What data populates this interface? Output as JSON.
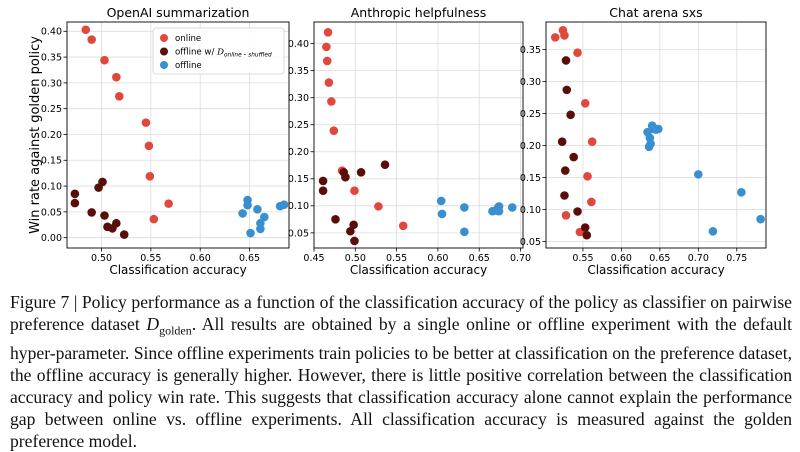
{
  "colors": {
    "online": "#e0483e",
    "offline_shuffled": "#5a0e0a",
    "offline": "#3a8fd0"
  },
  "shared_ylabel": "Win rate against golden policy",
  "chart_data": [
    {
      "type": "scatter",
      "title": "OpenAI summarization",
      "xlabel": "Classification accuracy",
      "xlim": [
        0.465,
        0.69
      ],
      "ylim": [
        -0.02,
        0.418
      ],
      "xticks": [
        0.5,
        0.55,
        0.6,
        0.65
      ],
      "xtick_labels": [
        "0.50",
        "0.55",
        "0.60",
        "0.65"
      ],
      "yticks": [
        0,
        0.05,
        0.1,
        0.15,
        0.2,
        0.25,
        0.3,
        0.35,
        0.4
      ],
      "ytick_labels": [
        "0.00",
        "0.05",
        "0.10",
        "0.15",
        "0.20",
        "0.25",
        "0.30",
        "0.35",
        "0.40"
      ],
      "grid": true,
      "legend": "top-center",
      "legend_entries": [
        {
          "key": "online",
          "label": "online"
        },
        {
          "key": "offline_shuffled",
          "label": "offline w/ ",
          "math": "D",
          "sub": "online – shuffled"
        },
        {
          "key": "offline",
          "label": "offline"
        }
      ],
      "series": [
        {
          "key": "online",
          "name": "online",
          "points": [
            [
              0.484,
              0.403
            ],
            [
              0.49,
              0.384
            ],
            [
              0.503,
              0.344
            ],
            [
              0.515,
              0.311
            ],
            [
              0.518,
              0.274
            ],
            [
              0.545,
              0.223
            ],
            [
              0.548,
              0.178
            ],
            [
              0.549,
              0.119
            ],
            [
              0.553,
              0.036
            ],
            [
              0.568,
              0.066
            ]
          ]
        },
        {
          "key": "offline_shuffled",
          "name": "offline w/ D online–shuffled",
          "points": [
            [
              0.473,
              0.085
            ],
            [
              0.473,
              0.067
            ],
            [
              0.497,
              0.097
            ],
            [
              0.501,
              0.108
            ],
            [
              0.49,
              0.049
            ],
            [
              0.503,
              0.043
            ],
            [
              0.506,
              0.021
            ],
            [
              0.511,
              0.018
            ],
            [
              0.515,
              0.028
            ],
            [
              0.523,
              0.006
            ]
          ]
        },
        {
          "key": "offline",
          "name": "offline",
          "points": [
            [
              0.643,
              0.047
            ],
            [
              0.648,
              0.073
            ],
            [
              0.648,
              0.063
            ],
            [
              0.651,
              0.009
            ],
            [
              0.658,
              0.055
            ],
            [
              0.661,
              0.028
            ],
            [
              0.661,
              0.017
            ],
            [
              0.665,
              0.04
            ],
            [
              0.681,
              0.061
            ],
            [
              0.685,
              0.064
            ]
          ]
        }
      ]
    },
    {
      "type": "scatter",
      "title": "Anthropic helpfulness",
      "xlabel": "Classification accuracy",
      "xlim": [
        0.45,
        0.703
      ],
      "ylim": [
        0.022,
        0.44
      ],
      "xticks": [
        0.45,
        0.5,
        0.55,
        0.6,
        0.65,
        0.7
      ],
      "xtick_labels": [
        "0.45",
        "0.50",
        "0.55",
        "0.60",
        "0.65",
        "0.70"
      ],
      "yticks": [
        0.05,
        0.1,
        0.15,
        0.2,
        0.25,
        0.3,
        0.35,
        0.4
      ],
      "ytick_labels": [
        "0.05",
        "0.10",
        "0.15",
        "0.20",
        "0.25",
        "0.30",
        "0.35",
        "0.40"
      ],
      "grid": true,
      "series": [
        {
          "key": "online",
          "name": "online",
          "points": [
            [
              0.467,
              0.421
            ],
            [
              0.465,
              0.394
            ],
            [
              0.466,
              0.368
            ],
            [
              0.468,
              0.328
            ],
            [
              0.471,
              0.293
            ],
            [
              0.474,
              0.239
            ],
            [
              0.484,
              0.165
            ],
            [
              0.499,
              0.128
            ],
            [
              0.528,
              0.099
            ],
            [
              0.558,
              0.063
            ]
          ]
        },
        {
          "key": "offline_shuffled",
          "name": "offline w/ D online–shuffled",
          "points": [
            [
              0.461,
              0.146
            ],
            [
              0.461,
              0.128
            ],
            [
              0.486,
              0.162
            ],
            [
              0.488,
              0.153
            ],
            [
              0.507,
              0.162
            ],
            [
              0.536,
              0.176
            ],
            [
              0.476,
              0.075
            ],
            [
              0.494,
              0.053
            ],
            [
              0.498,
              0.065
            ],
            [
              0.499,
              0.035
            ]
          ]
        },
        {
          "key": "offline",
          "name": "offline",
          "points": [
            [
              0.604,
              0.109
            ],
            [
              0.605,
              0.085
            ],
            [
              0.632,
              0.097
            ],
            [
              0.632,
              0.052
            ],
            [
              0.666,
              0.09
            ],
            [
              0.671,
              0.091
            ],
            [
              0.673,
              0.097
            ],
            [
              0.674,
              0.09
            ],
            [
              0.69,
              0.097
            ],
            [
              0.674,
              0.099
            ]
          ]
        }
      ]
    },
    {
      "type": "scatter",
      "title": "Chat arena sxs",
      "xlabel": "Classification accuracy",
      "xlim": [
        0.502,
        0.788
      ],
      "ylim": [
        0.04,
        0.393
      ],
      "xticks": [
        0.55,
        0.6,
        0.65,
        0.7,
        0.75
      ],
      "xtick_labels": [
        "0.55",
        "0.60",
        "0.65",
        "0.70",
        "0.75"
      ],
      "yticks": [
        0.05,
        0.1,
        0.15,
        0.2,
        0.25,
        0.3,
        0.35
      ],
      "ytick_labels": [
        "0.05",
        "0.10",
        "0.15",
        "0.20",
        "0.25",
        "0.30",
        "0.35"
      ],
      "grid": true,
      "series": [
        {
          "key": "online",
          "name": "online",
          "points": [
            [
              0.514,
              0.369
            ],
            [
              0.524,
              0.38
            ],
            [
              0.526,
              0.372
            ],
            [
              0.543,
              0.345
            ],
            [
              0.553,
              0.266
            ],
            [
              0.562,
              0.206
            ],
            [
              0.556,
              0.152
            ],
            [
              0.561,
              0.112
            ],
            [
              0.528,
              0.091
            ],
            [
              0.546,
              0.065
            ]
          ]
        },
        {
          "key": "offline_shuffled",
          "name": "offline w/ D online–shuffled",
          "points": [
            [
              0.528,
              0.333
            ],
            [
              0.529,
              0.287
            ],
            [
              0.534,
              0.248
            ],
            [
              0.523,
              0.206
            ],
            [
              0.538,
              0.182
            ],
            [
              0.527,
              0.161
            ],
            [
              0.526,
              0.122
            ],
            [
              0.543,
              0.097
            ],
            [
              0.553,
              0.072
            ],
            [
              0.555,
              0.06
            ]
          ]
        },
        {
          "key": "offline",
          "name": "offline",
          "points": [
            [
              0.634,
              0.221
            ],
            [
              0.637,
              0.212
            ],
            [
              0.638,
              0.203
            ],
            [
              0.64,
              0.231
            ],
            [
              0.642,
              0.226
            ],
            [
              0.645,
              0.225
            ],
            [
              0.648,
              0.226
            ],
            [
              0.636,
              0.198
            ],
            [
              0.7,
              0.155
            ],
            [
              0.756,
              0.127
            ],
            [
              0.781,
              0.085
            ],
            [
              0.719,
              0.066
            ]
          ]
        }
      ]
    }
  ],
  "caption": {
    "prefix": "Figure 7 | Policy performance as a function of the classification accuracy of the policy as classifier on pairwise preference dataset ",
    "math": "D",
    "math_sub": "golden",
    "suffix": ". All results are obtained by a single online or offline experiment with the default hyper-parameter. Since offline experiments train policies to be better at classification on the preference dataset, the offline accuracy is generally higher. However, there is little positive correlation between the classification accuracy and policy win rate. This suggests that classification accuracy alone cannot explain the performance gap between online vs. offline experiments. All classification accuracy is measured against the golden preference model."
  }
}
